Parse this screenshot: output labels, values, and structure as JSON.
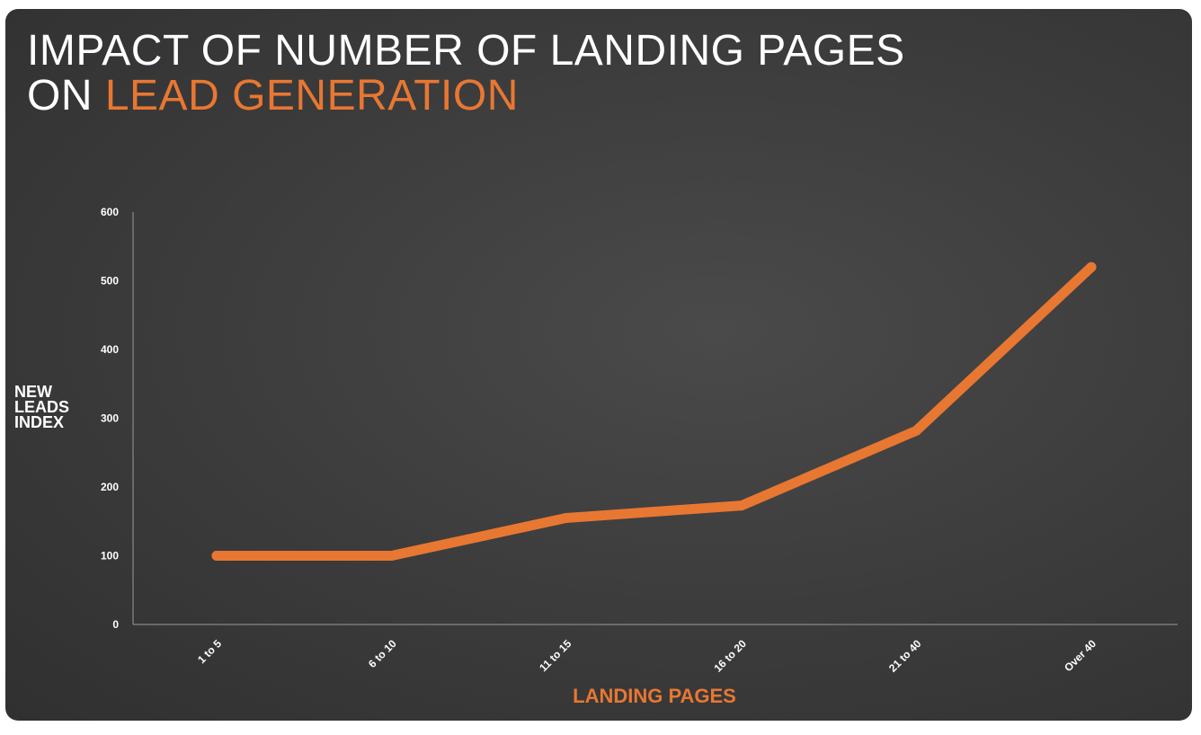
{
  "chart_data": {
    "type": "line",
    "title_line1": "IMPACT OF NUMBER OF LANDING PAGES",
    "title_line2_prefix": "ON ",
    "title_line2_accent": "LEAD GENERATION",
    "ylabel_lines": [
      "NEW",
      "LEADS",
      "INDEX"
    ],
    "xlabel": "LANDING PAGES",
    "categories": [
      "1 to 5",
      "6 to 10",
      "11 to 15",
      "16 to 20",
      "21 to 40",
      "Over 40"
    ],
    "values": [
      100,
      100,
      155,
      173,
      282,
      520
    ],
    "yticks": [
      0,
      100,
      200,
      300,
      400,
      500,
      600
    ],
    "ylim": [
      0,
      600
    ],
    "grid": false,
    "colors": {
      "line": "#e87732",
      "accent": "#e87732",
      "axis": "#9a9a9a",
      "text": "#ffffff"
    }
  }
}
